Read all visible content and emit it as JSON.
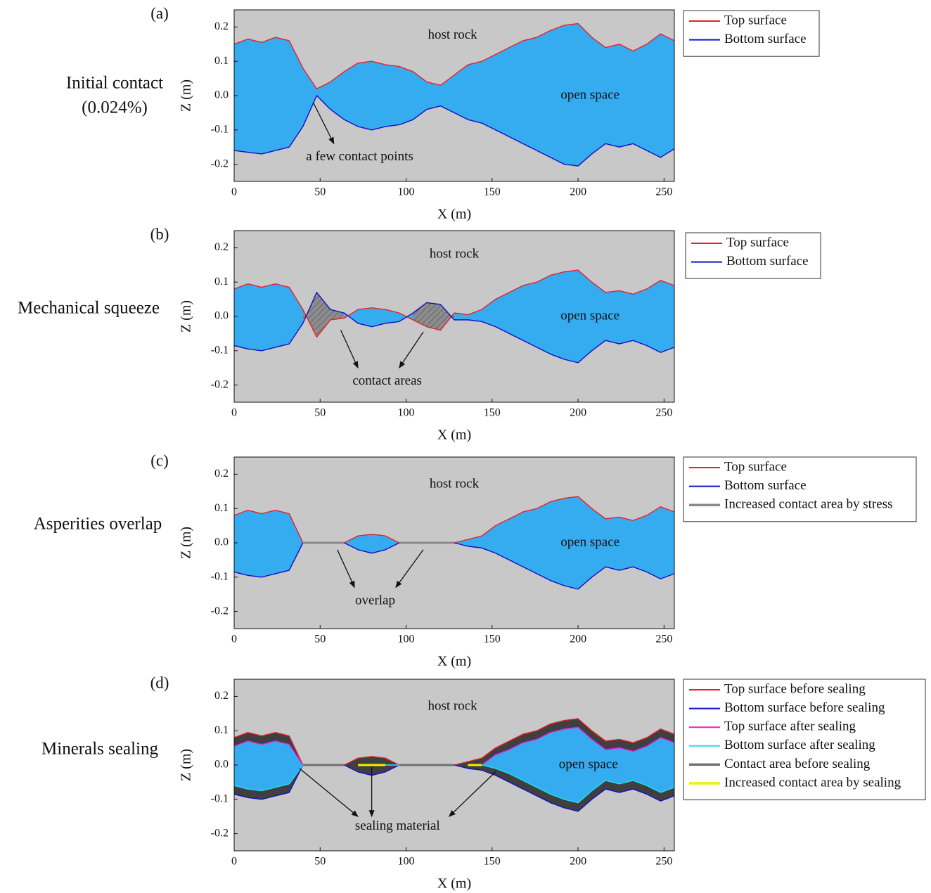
{
  "chart_data": [
    {
      "type": "profile",
      "label": "(a)",
      "side_title": [
        "Initial contact",
        "(0.024%)"
      ],
      "x_label": "X (m)",
      "y_label": "Z (m)",
      "annotations": [
        "host rock",
        "open space",
        "a few contact points"
      ],
      "xlim": [
        0,
        256
      ],
      "ylim": [
        -0.25,
        0.25
      ],
      "xticks": [
        0,
        50,
        100,
        150,
        200,
        250
      ],
      "yticks": [
        0.2,
        0.1,
        {
          "value": 0,
          "label": "0.0"
        },
        -0.1,
        -0.2
      ],
      "x": [
        0,
        8,
        16,
        24,
        32,
        40,
        48,
        56,
        64,
        72,
        80,
        88,
        96,
        104,
        112,
        120,
        128,
        136,
        144,
        152,
        160,
        168,
        176,
        184,
        192,
        200,
        208,
        216,
        224,
        232,
        240,
        248,
        256
      ],
      "series": [
        {
          "name": "Top surface",
          "color": "#e8202a",
          "values": [
            0.15,
            0.165,
            0.155,
            0.17,
            0.16,
            0.08,
            0.02,
            0.04,
            0.07,
            0.095,
            0.1,
            0.09,
            0.085,
            0.07,
            0.04,
            0.03,
            0.06,
            0.09,
            0.1,
            0.12,
            0.14,
            0.16,
            0.17,
            0.19,
            0.205,
            0.21,
            0.17,
            0.14,
            0.15,
            0.13,
            0.15,
            0.18,
            0.16
          ]
        },
        {
          "name": "Bottom surface",
          "color": "#1010c8",
          "values": [
            -0.16,
            -0.165,
            -0.17,
            -0.16,
            -0.15,
            -0.09,
            0.0,
            -0.04,
            -0.07,
            -0.09,
            -0.1,
            -0.09,
            -0.085,
            -0.07,
            -0.04,
            -0.03,
            -0.05,
            -0.07,
            -0.08,
            -0.1,
            -0.12,
            -0.14,
            -0.16,
            -0.18,
            -0.2,
            -0.205,
            -0.17,
            -0.14,
            -0.15,
            -0.14,
            -0.16,
            -0.18,
            -0.155
          ]
        }
      ]
    },
    {
      "type": "profile",
      "label": "(b)",
      "side_title": [
        "Mechanical squeeze"
      ],
      "x_label": "X (m)",
      "y_label": "Z (m)",
      "annotations": [
        "host rock",
        "open space",
        "contact areas"
      ],
      "xlim": [
        0,
        256
      ],
      "ylim": [
        -0.25,
        0.25
      ],
      "xticks": [
        0,
        50,
        100,
        150,
        200,
        250
      ],
      "yticks": [
        0.2,
        0.1,
        {
          "value": 0,
          "label": "0.0"
        },
        -0.1,
        -0.2
      ],
      "x": [
        0,
        8,
        16,
        24,
        32,
        40,
        48,
        56,
        64,
        72,
        80,
        88,
        96,
        104,
        112,
        120,
        128,
        136,
        144,
        152,
        160,
        168,
        176,
        184,
        192,
        200,
        208,
        216,
        224,
        232,
        240,
        248,
        256
      ],
      "series": [
        {
          "name": "Top surface",
          "color": "#e8202a",
          "values": [
            0.08,
            0.095,
            0.085,
            0.095,
            0.085,
            0.02,
            -0.06,
            -0.01,
            -0.005,
            0.02,
            0.025,
            0.02,
            0.01,
            -0.01,
            -0.03,
            -0.04,
            0.01,
            0.005,
            0.02,
            0.05,
            0.07,
            0.09,
            0.1,
            0.12,
            0.13,
            0.135,
            0.1,
            0.07,
            0.075,
            0.065,
            0.08,
            0.105,
            0.09
          ]
        },
        {
          "name": "Bottom surface",
          "color": "#1010c8",
          "values": [
            -0.085,
            -0.095,
            -0.1,
            -0.09,
            -0.08,
            -0.02,
            0.07,
            0.02,
            0.01,
            -0.02,
            -0.03,
            -0.02,
            -0.015,
            0.01,
            0.04,
            0.035,
            -0.01,
            -0.01,
            -0.015,
            -0.03,
            -0.05,
            -0.07,
            -0.09,
            -0.11,
            -0.125,
            -0.135,
            -0.1,
            -0.07,
            -0.08,
            -0.07,
            -0.085,
            -0.105,
            -0.09
          ]
        }
      ]
    },
    {
      "type": "profile",
      "label": "(c)",
      "side_title": [
        "Asperities overlap"
      ],
      "x_label": "X (m)",
      "y_label": "Z (m)",
      "annotations": [
        "host rock",
        "open space",
        "overlap"
      ],
      "xlim": [
        0,
        256
      ],
      "ylim": [
        -0.25,
        0.25
      ],
      "xticks": [
        0,
        50,
        100,
        150,
        200,
        250
      ],
      "yticks": [
        0.2,
        0.1,
        {
          "value": 0,
          "label": "0.0"
        },
        -0.1,
        -0.2
      ],
      "x": [
        0,
        8,
        16,
        24,
        32,
        40,
        48,
        56,
        64,
        72,
        80,
        88,
        96,
        104,
        112,
        120,
        128,
        136,
        144,
        152,
        160,
        168,
        176,
        184,
        192,
        200,
        208,
        216,
        224,
        232,
        240,
        248,
        256
      ],
      "series": [
        {
          "name": "Top surface",
          "color": "#e8202a",
          "values": [
            0.08,
            0.095,
            0.085,
            0.095,
            0.085,
            0,
            null,
            null,
            0,
            0.02,
            0.025,
            0.02,
            0,
            null,
            null,
            null,
            0,
            0.01,
            0.02,
            0.05,
            0.07,
            0.09,
            0.1,
            0.12,
            0.13,
            0.135,
            0.1,
            0.07,
            0.075,
            0.065,
            0.08,
            0.105,
            0.09
          ]
        },
        {
          "name": "Bottom surface",
          "color": "#1010c8",
          "values": [
            -0.085,
            -0.095,
            -0.1,
            -0.09,
            -0.08,
            0,
            null,
            null,
            0,
            -0.02,
            -0.03,
            -0.02,
            0,
            null,
            null,
            null,
            0,
            -0.01,
            -0.015,
            -0.03,
            -0.05,
            -0.07,
            -0.09,
            -0.11,
            -0.125,
            -0.135,
            -0.1,
            -0.07,
            -0.08,
            -0.07,
            -0.085,
            -0.105,
            -0.09
          ]
        },
        {
          "name": "Increased contact area by stress",
          "color": "#8a8a8a",
          "values": [
            null,
            null,
            null,
            null,
            null,
            0,
            0,
            0,
            0,
            null,
            null,
            null,
            0,
            0,
            0,
            0,
            0,
            null,
            null,
            null,
            null,
            null,
            null,
            null,
            null,
            null,
            null,
            null,
            null,
            null,
            null,
            null,
            null
          ]
        }
      ]
    },
    {
      "type": "profile",
      "label": "(d)",
      "side_title": [
        "Minerals sealing"
      ],
      "x_label": "X (m)",
      "y_label": "Z (m)",
      "annotations": [
        "host rock",
        "open space",
        "sealing material"
      ],
      "xlim": [
        0,
        256
      ],
      "ylim": [
        -0.25,
        0.25
      ],
      "xticks": [
        0,
        50,
        100,
        150,
        200,
        250
      ],
      "yticks": [
        0.2,
        0.1,
        {
          "value": 0,
          "label": "0.0"
        },
        -0.1,
        -0.2
      ],
      "x": [
        0,
        8,
        16,
        24,
        32,
        40,
        48,
        56,
        64,
        72,
        80,
        88,
        96,
        104,
        112,
        120,
        128,
        136,
        144,
        152,
        160,
        168,
        176,
        184,
        192,
        200,
        208,
        216,
        224,
        232,
        240,
        248,
        256
      ],
      "series": [
        {
          "name": "Top surface before sealing",
          "color": "#e8202a",
          "values": [
            0.08,
            0.095,
            0.085,
            0.095,
            0.085,
            0,
            null,
            null,
            0,
            0.02,
            0.025,
            0.02,
            0,
            null,
            null,
            null,
            0,
            0.01,
            0.02,
            0.05,
            0.07,
            0.09,
            0.1,
            0.12,
            0.13,
            0.135,
            0.1,
            0.07,
            0.075,
            0.065,
            0.08,
            0.105,
            0.09
          ]
        },
        {
          "name": "Bottom surface before sealing",
          "color": "#1010c8",
          "values": [
            -0.085,
            -0.095,
            -0.1,
            -0.09,
            -0.08,
            0,
            null,
            null,
            0,
            -0.02,
            -0.03,
            -0.02,
            0,
            null,
            null,
            null,
            0,
            -0.01,
            -0.015,
            -0.03,
            -0.05,
            -0.07,
            -0.09,
            -0.11,
            -0.125,
            -0.135,
            -0.1,
            -0.07,
            -0.08,
            -0.07,
            -0.085,
            -0.105,
            -0.09
          ]
        },
        {
          "name": "Top surface after sealing",
          "color": "#e020e0",
          "values": [
            0.055,
            0.07,
            0.06,
            0.07,
            0.06,
            0,
            null,
            null,
            null,
            0,
            0,
            0,
            0,
            null,
            null,
            null,
            null,
            0,
            0,
            0.03,
            0.045,
            0.065,
            0.075,
            0.095,
            0.105,
            0.11,
            0.075,
            0.045,
            0.05,
            0.04,
            0.055,
            0.08,
            0.065
          ]
        },
        {
          "name": "Bottom surface after sealing",
          "color": "#20e0f0",
          "values": [
            -0.06,
            -0.07,
            -0.075,
            -0.065,
            -0.055,
            0,
            null,
            null,
            null,
            0,
            0,
            0,
            0,
            null,
            null,
            null,
            null,
            0,
            0,
            -0.01,
            -0.025,
            -0.045,
            -0.065,
            -0.085,
            -0.1,
            -0.11,
            -0.075,
            -0.045,
            -0.055,
            -0.045,
            -0.06,
            -0.08,
            -0.065
          ]
        },
        {
          "name": "Contact area before sealing",
          "color": "#707070",
          "values": [
            null,
            null,
            null,
            null,
            null,
            0,
            0,
            0,
            0,
            null,
            null,
            null,
            0,
            0,
            0,
            0,
            0,
            null,
            null,
            null,
            null,
            null,
            null,
            null,
            null,
            null,
            null,
            null,
            null,
            null,
            null,
            null,
            null
          ]
        },
        {
          "name": "Increased contact area by sealing",
          "color": "#f0f000",
          "values": [
            null,
            null,
            null,
            null,
            null,
            null,
            null,
            null,
            null,
            0,
            0,
            0,
            null,
            null,
            null,
            null,
            null,
            0,
            0,
            null,
            null,
            null,
            null,
            null,
            null,
            null,
            null,
            null,
            null,
            null,
            null,
            null,
            null
          ]
        }
      ]
    }
  ]
}
